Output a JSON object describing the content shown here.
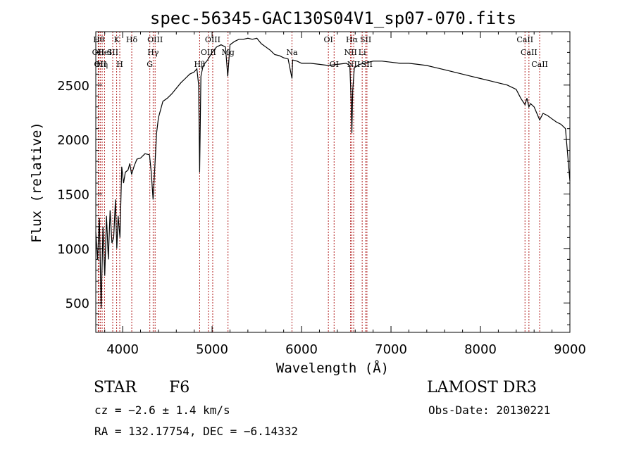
{
  "chart_data": {
    "type": "line",
    "title": "spec-56345-GAC130S04V1_sp07-070.fits",
    "xlabel": "Wavelength (Å)",
    "ylabel": "Flux (relative)",
    "xlim": [
      3700,
      9000
    ],
    "ylim": [
      230,
      2990
    ],
    "xticks": [
      4000,
      5000,
      6000,
      7000,
      8000,
      9000
    ],
    "xtick_labels": [
      "4000",
      "5000",
      "6000",
      "7000",
      "8000",
      "9000"
    ],
    "yticks": [
      500,
      1000,
      1500,
      2000,
      2500
    ],
    "ytick_labels": [
      "500",
      "1000",
      "1500",
      "2000",
      "2500"
    ],
    "grid": false,
    "legend": "none",
    "line_color": "#000000",
    "marker_color": "#b22222",
    "series": [
      {
        "x": [
          3700,
          3720,
          3740,
          3760,
          3780,
          3800,
          3820,
          3840,
          3860,
          3880,
          3900,
          3920,
          3935,
          3950,
          3970,
          3990,
          4010,
          4030,
          4060,
          4080,
          4100,
          4130,
          4160,
          4200,
          4250,
          4300,
          4320,
          4340,
          4360,
          4380,
          4400,
          4450,
          4500,
          4550,
          4600,
          4650,
          4700,
          4750,
          4800,
          4830,
          4850,
          4861,
          4875,
          4900,
          4950,
          5000,
          5050,
          5100,
          5150,
          5175,
          5200,
          5250,
          5300,
          5350,
          5400,
          5450,
          5500,
          5550,
          5600,
          5650,
          5700,
          5750,
          5800,
          5850,
          5893,
          5900,
          5950,
          6000,
          6100,
          6200,
          6300,
          6400,
          6500,
          6540,
          6555,
          6563,
          6572,
          6590,
          6650,
          6700,
          6800,
          6900,
          7000,
          7100,
          7200,
          7300,
          7400,
          7500,
          7600,
          7700,
          7800,
          7900,
          8000,
          8100,
          8200,
          8300,
          8400,
          8450,
          8498,
          8520,
          8542,
          8560,
          8600,
          8662,
          8700,
          8750,
          8800,
          8850,
          8900,
          8950,
          9000
        ],
        "y": [
          1150,
          900,
          1280,
          450,
          1200,
          750,
          1300,
          900,
          1350,
          1050,
          1100,
          1450,
          1000,
          1300,
          1100,
          1750,
          1600,
          1700,
          1720,
          1780,
          1680,
          1760,
          1820,
          1830,
          1870,
          1860,
          1700,
          1450,
          1750,
          2060,
          2200,
          2350,
          2380,
          2420,
          2470,
          2520,
          2560,
          2600,
          2620,
          2650,
          2500,
          1700,
          2580,
          2680,
          2730,
          2800,
          2850,
          2870,
          2850,
          2580,
          2870,
          2900,
          2920,
          2920,
          2930,
          2920,
          2930,
          2880,
          2850,
          2820,
          2780,
          2770,
          2750,
          2740,
          2560,
          2730,
          2720,
          2700,
          2700,
          2690,
          2680,
          2690,
          2700,
          2680,
          2350,
          2060,
          2450,
          2660,
          2690,
          2700,
          2720,
          2720,
          2710,
          2700,
          2700,
          2690,
          2680,
          2660,
          2640,
          2620,
          2600,
          2580,
          2560,
          2540,
          2520,
          2500,
          2460,
          2380,
          2320,
          2380,
          2300,
          2330,
          2300,
          2180,
          2240,
          2220,
          2190,
          2160,
          2140,
          2100,
          1620
        ]
      }
    ],
    "lines": [
      {
        "wavelength": 3734,
        "label": "Hθ",
        "row": 0
      },
      {
        "wavelength": 3727,
        "label": "OII",
        "row": 1
      },
      {
        "wavelength": 3750,
        "label": "OII",
        "row": 2
      },
      {
        "wavelength": 3771,
        "label": "Hη",
        "row": 2
      },
      {
        "wavelength": 3798,
        "label": "HeI",
        "row": 1
      },
      {
        "wavelength": 3889,
        "label": "SII",
        "row": 1
      },
      {
        "wavelength": 3933,
        "label": "K",
        "row": 0
      },
      {
        "wavelength": 3968,
        "label": "H",
        "row": 2
      },
      {
        "wavelength": 4102,
        "label": "Hδ",
        "row": 0
      },
      {
        "wavelength": 4304,
        "label": "G",
        "row": 2
      },
      {
        "wavelength": 4341,
        "label": "Hγ",
        "row": 1
      },
      {
        "wavelength": 4363,
        "label": "OIII",
        "row": 0
      },
      {
        "wavelength": 4861,
        "label": "Hβ",
        "row": 2
      },
      {
        "wavelength": 4959,
        "label": "OIII",
        "row": 1
      },
      {
        "wavelength": 5007,
        "label": "OIII",
        "row": 0
      },
      {
        "wavelength": 5178,
        "label": "Mg",
        "row": 1
      },
      {
        "wavelength": 5893,
        "label": "Na",
        "row": 1
      },
      {
        "wavelength": 6300,
        "label": "OI",
        "row": 0
      },
      {
        "wavelength": 6364,
        "label": "OI",
        "row": 2
      },
      {
        "wavelength": 6548,
        "label": "NII",
        "row": 1
      },
      {
        "wavelength": 6563,
        "label": "Hα",
        "row": 0
      },
      {
        "wavelength": 6583,
        "label": "NII",
        "row": 2
      },
      {
        "wavelength": 6678,
        "label": "Li",
        "row": 1
      },
      {
        "wavelength": 6717,
        "label": "SII",
        "row": 0
      },
      {
        "wavelength": 6731,
        "label": "SII",
        "row": 2
      },
      {
        "wavelength": 8498,
        "label": "CaII",
        "row": 0
      },
      {
        "wavelength": 8542,
        "label": "CaII",
        "row": 1
      },
      {
        "wavelength": 8662,
        "label": "CaII",
        "row": 2
      }
    ]
  },
  "info": {
    "object_class": "STAR",
    "subclass": "F6",
    "survey": "LAMOST DR3",
    "redshift": "cz = −2.6 ± 1.4 km/s",
    "obs_date": "Obs-Date: 20130221",
    "coords": "RA = 132.17754, DEC =  −6.14332"
  }
}
